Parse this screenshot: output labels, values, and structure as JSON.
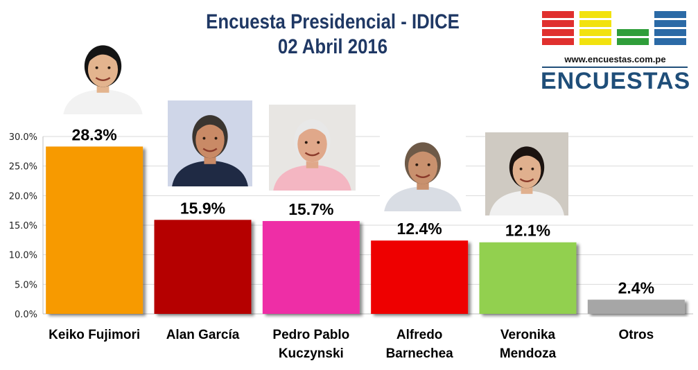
{
  "header": {
    "title_line1": "Encuesta Presidencial - IDICE",
    "title_line2": "02 Abril 2016"
  },
  "logo": {
    "url": "www.encuestas.com.pe",
    "name": "ENCUESTAS",
    "block_colors": [
      "#e0302e",
      "#f2e20e",
      "#2f9e3a",
      "#2b6aa6"
    ]
  },
  "chart_data": {
    "type": "bar",
    "title": "Encuesta Presidencial - IDICE",
    "subtitle": "02 Abril 2016",
    "xlabel": "",
    "ylabel": "",
    "ylim": [
      0,
      30
    ],
    "yticks": [
      "0.0%",
      "5.0%",
      "10.0%",
      "15.0%",
      "20.0%",
      "25.0%",
      "30.0%"
    ],
    "grid": true,
    "legend": "none",
    "categories": [
      "Keiko Fujimori",
      "Alan García",
      "Pedro Pablo Kuczynski",
      "Alfredo Barnechea",
      "Veronika Mendoza",
      "Otros"
    ],
    "category_lines": [
      [
        "Keiko Fujimori"
      ],
      [
        "Alan García"
      ],
      [
        "Pedro Pablo",
        "Kuczynski"
      ],
      [
        "Alfredo",
        "Barnechea"
      ],
      [
        "Veronika",
        "Mendoza"
      ],
      [
        "Otros"
      ]
    ],
    "values": [
      28.3,
      15.9,
      15.7,
      12.4,
      12.1,
      2.4
    ],
    "value_labels": [
      "28.3%",
      "15.9%",
      "15.7%",
      "12.4%",
      "12.1%",
      "2.4%"
    ],
    "colors": [
      "#f79a00",
      "#b50000",
      "#ee2ea6",
      "#ee0000",
      "#92d050",
      "#a6a6a6"
    ]
  },
  "photos": [
    {
      "name": "candidate-photo-keiko-fujimori",
      "hair": "#141414",
      "skin": "#e3b48e",
      "cloth": "#f2f2f2",
      "bg": "#ffffff"
    },
    {
      "name": "candidate-photo-alan-garcia",
      "hair": "#3a3530",
      "skin": "#c98a66",
      "cloth": "#1f2a44",
      "bg": "#cfd6e8"
    },
    {
      "name": "candidate-photo-pedro-pablo-kuczynski",
      "hair": "#e8e8e8",
      "skin": "#e0a88a",
      "cloth": "#f4b6c2",
      "bg": "#e8e6e3"
    },
    {
      "name": "candidate-photo-alfredo-barnechea",
      "hair": "#6e5a48",
      "skin": "#c9916e",
      "cloth": "#d9dde4",
      "bg": "#ffffff"
    },
    {
      "name": "candidate-photo-veronika-mendoza",
      "hair": "#1b1310",
      "skin": "#e0b08e",
      "cloth": "#f0f0f0",
      "bg": "#cfcac2"
    }
  ]
}
